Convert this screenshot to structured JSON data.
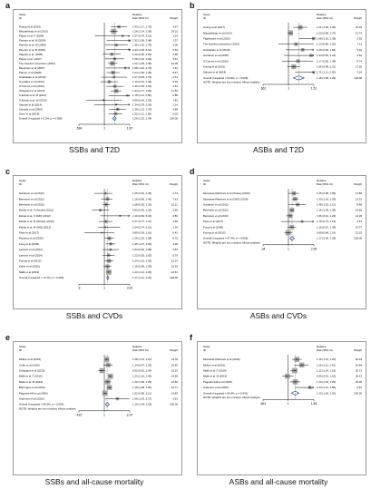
{
  "panels": [
    {
      "letter": "a",
      "caption": "SSBs and T2D",
      "chart_data": {
        "type": "forest",
        "header": {
          "study": "Study",
          "id": "ID",
          "rr": "Relative",
          "rr2": "Risk (95% CI)",
          "weight": "Weight"
        },
        "axis_ticks": [
          ".534",
          "1",
          "1.87"
        ],
        "studies": [
          {
            "label": "Huang et al (2014)",
            "rr": 1.43,
            "lo": 1.17,
            "hi": 1.75,
            "ci_text": "1.43 (1.17, 1.75)",
            "weight": "4.67"
          },
          {
            "label": "Bhupathiraju et al (2013)",
            "rr": 1.26,
            "lo": 1.14,
            "hi": 1.39,
            "ci_text": "1.26 (1.14, 1.39)",
            "weight": "20.01"
          },
          {
            "label": "Papier et al. F (2009)",
            "rr": 1.57,
            "lo": 0.79,
            "hi": 3.12,
            "ci_text": "1.57 (0.79, 3.12)",
            "weight": "1.24"
          },
          {
            "label": "Paynter et al. M (2009)",
            "rr": 1.92,
            "lo": 1.06,
            "hi": 3.48,
            "ci_text": "1.92 (1.06, 3.48)",
            "weight": "1.37"
          },
          {
            "label": "Paynter et al. W (2009)",
            "rr": 1.35,
            "lo": 1.02,
            "hi": 1.78,
            "ci_text": "1.35 (1.02, 1.78)",
            "weight": "3.06"
          },
          {
            "label": "Paynter et al. B (2009)",
            "rr": 2.43,
            "lo": 1.05,
            "hi": 5.61,
            "ci_text": "2.43 (1.05, 5.61)",
            "weight": "0.64"
          },
          {
            "label": "Pappas et al. (2006)",
            "rr": 1.2,
            "lo": 0.96,
            "hi": 1.5,
            "ci_text": "1.20 (0.96, 1.50)",
            "weight": "4.96"
          },
          {
            "label": "Papier et al. (2017)",
            "rr": 1.29,
            "lo": 1.02,
            "hi": 1.63,
            "ci_text": "1.29 (1.02, 1.63)",
            "weight": "3.91"
          },
          {
            "label": "The InterAct consortium (2013)",
            "rr": 1.22,
            "lo": 1.09,
            "hi": 1.38,
            "ci_text": "1.22 (1.09, 1.38)",
            "weight": "14.09"
          },
          {
            "label": "Montonen et al (2007)",
            "rr": 1.68,
            "lo": 1.04,
            "hi": 2.7,
            "ci_text": "1.68 (1.04, 2.70)",
            "weight": "1.61"
          },
          {
            "label": "Palmer et al (2008)",
            "rr": 1.24,
            "lo": 1.06,
            "hi": 1.45,
            "ci_text": "1.24 (1.06, 1.45)",
            "weight": "8.67"
          },
          {
            "label": "Hirahatake et al (2019)",
            "rr": 1.27,
            "lo": 0.93,
            "hi": 1.74,
            "ci_text": "1.27 (0.93, 1.74)",
            "weight": "2.51"
          },
          {
            "label": "Gonzalez et al (2014)",
            "rr": 1.13,
            "lo": 0.91,
            "hi": 1.4,
            "ci_text": "1.13 (0.91, 1.40)",
            "weight": "5.04"
          },
          {
            "label": "O'Connor et al (2015)",
            "rr": 1.3,
            "lo": 1.05,
            "hi": 1.61,
            "ci_text": "1.30 (1.05, 1.61)",
            "weight": "4.51"
          },
          {
            "label": "Odegaard et al (2010)",
            "rr": 1.34,
            "lo": 1.17,
            "hi": 1.52,
            "ci_text": "1.34 (1.17, 1.52)",
            "weight": "11.52"
          },
          {
            "label": "S.Eshak et al. M (2013)",
            "rr": 1.75,
            "lo": 1.11,
            "hi": 2.65,
            "ci_text": "1.75 (1.11, 2.65)",
            "weight": "0.88"
          },
          {
            "label": "S.Eshak et al. W (2013)",
            "rr": 0.99,
            "lo": 0.64,
            "hi": 1.53,
            "ci_text": "0.99 (0.64, 1.53)",
            "weight": "1.81"
          },
          {
            "label": "Sakurai et al (2014)",
            "rr": 1.34,
            "lo": 0.78,
            "hi": 2.3,
            "ci_text": "1.34 (0.78, 2.30)",
            "weight": "1.14"
          },
          {
            "label": "Schulze et al (2004)",
            "rr": 1.39,
            "lo": 1.13,
            "hi": 1.7,
            "ci_text": "1.39 (1.13, 1.70)",
            "weight": "4.89"
          },
          {
            "label": "Stern et al (2019)",
            "rr": 1.32,
            "lo": 1.11,
            "hi": 1.56,
            "ci_text": "1.32 (1.11, 1.56)",
            "weight": "6.03"
          }
        ],
        "overall": {
          "label": "Overall (I-squared = 0.0%, p = 0.558)",
          "rr": 1.29,
          "lo": 1.23,
          "hi": 1.34,
          "ci_text": "1.29 (1.23, 1.34)",
          "weight": "100.00"
        },
        "note": ""
      }
    },
    {
      "letter": "b",
      "caption": "ASBs and T2D",
      "chart_data": {
        "type": "forest",
        "header": {
          "study": "Study",
          "id": "ID",
          "rr": "Relative",
          "rr2": "Risk (95% CI)",
          "weight": "Weight"
        },
        "axis_ticks": [
          ".662",
          "1",
          "1.51"
        ],
        "studies": [
          {
            "label": "Huang et al (2017)",
            "rr": 1.21,
            "lo": 1.08,
            "hi": 1.36,
            "ci_text": "1.21 (1.08, 1.36)",
            "weight": "15.23"
          },
          {
            "label": "Bhupathiraju et al (2013)",
            "rr": 1.03,
            "lo": 0.99,
            "hi": 1.07,
            "ci_text": "1.03 (0.99, 1.07)",
            "weight": "21.74"
          },
          {
            "label": "Fagherazzi et al (2013)",
            "rr": 1.68,
            "lo": 1.19,
            "hi": 2.38,
            "ci_text": "1.68 (1.19, 2.38)",
            "weight": "5.35"
          },
          {
            "label": "The InterAct consortium (2013)",
            "rr": 1.13,
            "lo": 0.85,
            "hi": 1.5,
            "ci_text": "1.13 (0.85, 1.50)",
            "weight": "7.11"
          },
          {
            "label": "Hirahatake et al (2019)",
            "rr": 1.26,
            "lo": 0.96,
            "hi": 1.66,
            "ci_text": "1.26 (0.96, 1.66)",
            "weight": "5.94"
          },
          {
            "label": "Gardener et al (2018)",
            "rr": 1.44,
            "lo": 0.93,
            "hi": 2.24,
            "ci_text": "1.44 (0.93, 2.24)",
            "weight": "4.62"
          },
          {
            "label": "O'Connor et al (2015)",
            "rr": 1.17,
            "lo": 0.9,
            "hi": 1.49,
            "ci_text": "1.17 (0.90, 1.49)",
            "weight": "8.74"
          },
          {
            "label": "Koning et al (2011)",
            "rr": 1.09,
            "lo": 0.98,
            "hi": 1.21,
            "ci_text": "1.09 (0.98, 1.21)",
            "weight": "17.20"
          },
          {
            "label": "Sakurai et al (2014)",
            "rr": 1.71,
            "lo": 1.11,
            "hi": 2.63,
            "ci_text": "1.71 (1.11, 2.63)",
            "weight": "3.24"
          }
        ],
        "overall": {
          "label": "Overall (I-squared = 63.0%, p = 0.006)",
          "rr": 1.18,
          "lo": 1.08,
          "hi": 1.29,
          "ci_text": "1.18 (1.08, 1.29)",
          "weight": "100.00"
        },
        "note": "NOTE: Weights are from random effects analysis"
      }
    },
    {
      "letter": "c",
      "caption": "SSBs and CVDs",
      "chart_data": {
        "type": "forest",
        "header": {
          "study": "Study",
          "id": "ID",
          "rr": "Relative",
          "rr2": "Risk (95% CI)",
          "weight": "Weight"
        },
        "axis_ticks": [
          ".3",
          "1",
          "3.32"
        ],
        "studies": [
          {
            "label": "Gardener et al (2012)",
            "rr": 1.05,
            "lo": 0.62,
            "hi": 1.46,
            "ci_text": "1.05 (0.62, 1.46)",
            "weight": "2.74"
          },
          {
            "label": "Bernstein et al (2012)",
            "rr": 1.16,
            "lo": 0.86,
            "hi": 1.46,
            "ci_text": "1.16 (0.86, 1.46)",
            "weight": "7.61"
          },
          {
            "label": "Bernstein et al (2013)",
            "rr": 1.08,
            "lo": 0.92,
            "hi": 1.3,
            "ci_text": "1.08 (0.92, 1.30)",
            "weight": "12.12"
          },
          {
            "label": "Eshak et al. F (Stroke) (2012)",
            "rr": 0.83,
            "lo": 0.56,
            "hi": 1.25,
            "ci_text": "0.83 (0.56, 1.25)",
            "weight": "3.56"
          },
          {
            "label": "Eshak et al. F (IHD) (2012)",
            "rr": 2.1,
            "lo": 0.83,
            "hi": 5.33,
            "ci_text": "2.10 (0.83, 5.33)",
            "weight": "0.83"
          },
          {
            "label": "Eshak et al. M (Stroke) (2012)",
            "rr": 1.07,
            "lo": 0.77,
            "hi": 1.47,
            "ci_text": "1.07 (0.77, 1.47)",
            "weight": "4.66"
          },
          {
            "label": "Eshak et al. M (IHD) (2012)",
            "rr": 1.04,
            "lo": 0.74,
            "hi": 2.1,
            "ci_text": "1.04 (0.74, 2.10)",
            "weight": "1.34"
          },
          {
            "label": "Pase et al (2017)",
            "rr": 0.89,
            "lo": 0.39,
            "hi": 1.61,
            "ci_text": "0.89 (0.39, 1.61)",
            "weight": "0.42"
          },
          {
            "label": "Pacheco et al (2020)",
            "rr": 1.26,
            "lo": 1.02,
            "hi": 1.58,
            "ci_text": "1.26 (1.02, 1.58)",
            "weight": "8.75"
          },
          {
            "label": "Fung et al (2009)",
            "rr": 1.35,
            "lo": 1.07,
            "hi": 1.69,
            "ci_text": "1.35 (1.07, 1.69)",
            "weight": "4.36"
          },
          {
            "label": "Larsson et al (2014)",
            "rr": 1.34,
            "lo": 0.92,
            "hi": 1.98,
            "ci_text": "1.34 (0.92, 1.98)",
            "weight": "2.64"
          },
          {
            "label": "Larsson et al (2014)",
            "rr": 1.22,
            "lo": 0.92,
            "hi": 1.62,
            "ci_text": "1.22 (0.92, 1.62)",
            "weight": "5.79"
          },
          {
            "label": "Koning et al (2012)",
            "rr": 1.24,
            "lo": 1.01,
            "hi": 1.52,
            "ci_text": "1.24 (1.01, 1.52)",
            "weight": "12.14"
          },
          {
            "label": "Keller et al (2020)",
            "rr": 1.16,
            "lo": 0.96,
            "hi": 1.39,
            "ci_text": "1.16 (0.96, 1.39)",
            "weight": "10.33"
          },
          {
            "label": "Malik et al (2019)",
            "rr": 1.23,
            "lo": 1.12,
            "hi": 1.36,
            "ci_text": "1.23 (1.12, 1.36)",
            "weight": "22.61"
          }
        ],
        "overall": {
          "label": "Overall (I-squared = 14.7%, p = 0.290)",
          "rr": 1.17,
          "lo": 1.12,
          "hi": 1.23,
          "ci_text": "1.17 (1.12, 1.23)",
          "weight": "100.00"
        },
        "note": ""
      }
    },
    {
      "letter": "d",
      "caption": "ASBs and CVDs",
      "chart_data": {
        "type": "forest",
        "header": {
          "study": "Study",
          "id": "ID",
          "rr": "Relative",
          "rr2": "Risk (95% CI)",
          "weight": "Weight"
        },
        "axis_ticks": [
          ".34",
          "1",
          "2.95"
        ],
        "studies": [
          {
            "label": "Mossavar-Rahmani et al (Stroke) (2019)",
            "rr": 1.26,
            "lo": 0.98,
            "hi": 1.59,
            "ci_text": "1.26 (0.98, 1.59)",
            "weight": "11.89"
          },
          {
            "label": "Mossavar-Rahmani et al (CHD) (2019)",
            "rr": 1.33,
            "lo": 1.16,
            "hi": 1.53,
            "ci_text": "1.33 (1.16, 1.53)",
            "weight": "12.51"
          },
          {
            "label": "Gardener et al (2012)",
            "rr": 1.48,
            "lo": 1.02,
            "hi": 2.11,
            "ci_text": "1.48 (1.02, 2.11)",
            "weight": "8.48"
          },
          {
            "label": "Bernstein et al (2012)",
            "rr": 1.16,
            "lo": 1.05,
            "hi": 1.28,
            "ci_text": "1.16 (1.05, 1.28)",
            "weight": "14.66"
          },
          {
            "label": "Bernstein et al (2013)",
            "rr": 1.06,
            "lo": 0.91,
            "hi": 1.23,
            "ci_text": "1.06 (0.91, 1.23)",
            "weight": "14.28"
          },
          {
            "label": "Pase et al (2017)",
            "rr": 1.79,
            "lo": 0.73,
            "hi": 3.19,
            "ci_text": "1.79 (0.73, 3.19)",
            "weight": "2.67"
          },
          {
            "label": "Fung et al (2009)",
            "rr": 1.16,
            "lo": 0.97,
            "hi": 1.39,
            "ci_text": "1.16 (0.97, 1.39)",
            "weight": "13.37"
          },
          {
            "label": "Koning et al (2012)",
            "rr": 0.99,
            "lo": 0.84,
            "hi": 1.16,
            "ci_text": "0.99 (0.84, 1.16)",
            "weight": "22.15"
          }
        ],
        "overall": {
          "label": "Overall (I-squared = 47.4%, p = 0.065)",
          "rr": 1.17,
          "lo": 1.06,
          "hi": 1.29,
          "ci_text": "1.17 (1.06, 1.29)",
          "weight": "100.00"
        },
        "note": "NOTE: Weights are from random effects analysis"
      }
    },
    {
      "letter": "e",
      "caption": "SSBs and all-cause mortality",
      "chart_data": {
        "type": "forest",
        "header": {
          "study": "Study",
          "id": "ID",
          "rr": "Relative",
          "rr2": "Risk (95% CI)",
          "weight": "Weight"
        },
        "axis_ticks": [
          ".422",
          "1",
          "2.37"
        ],
        "studies": [
          {
            "label": "Mullee et al (2019)",
            "rr": 1.08,
            "lo": 1.01,
            "hi": 1.16,
            "ci_text": "1.08 (1.01, 1.16)",
            "weight": "14.78"
          },
          {
            "label": "Collin et al (2019)",
            "rr": 1.14,
            "lo": 0.97,
            "hi": 1.33,
            "ci_text": "1.14 (0.97, 1.33)",
            "weight": "10.63"
          },
          {
            "label": "Odegaard et al (2015)",
            "rr": 0.92,
            "lo": 0.81,
            "hi": 1.04,
            "ci_text": "0.92 (0.81, 1.04)",
            "weight": "12.23"
          },
          {
            "label": "Malik et al. F (2019)",
            "rr": 1.23,
            "lo": 1.16,
            "hi": 1.3,
            "ci_text": "1.23 (1.16, 1.30)",
            "weight": "14.69"
          },
          {
            "label": "Malik et al. M (2019)",
            "rr": 1.12,
            "lo": 1.0,
            "hi": 1.26,
            "ci_text": "1.12 (1.00, 1.26)",
            "weight": "12.66"
          },
          {
            "label": "Barrington et al (2016)",
            "rr": 1.19,
            "lo": 1.08,
            "hi": 1.3,
            "ci_text": "1.19 (1.08, 1.30)",
            "weight": "12.77"
          },
          {
            "label": "Paganini-Hill et al (2006)",
            "rr": 1.02,
            "lo": 0.96,
            "hi": 1.11,
            "ci_text": "1.02 (0.96, 1.11)",
            "weight": "14.83"
          },
          {
            "label": "Anderson et al (2020)",
            "rr": 1.56,
            "lo": 1.03,
            "hi": 2.37,
            "ci_text": "1.56 (1.03, 2.37)",
            "weight": "3.51"
          }
        ],
        "overall": {
          "label": "Overall (I-squared = 80.6%, p = 0.000)",
          "rr": 1.1,
          "lo": 1.04,
          "hi": 1.18,
          "ci_text": "1.10 (1.04, 1.18)",
          "weight": "100.00"
        },
        "note": "NOTE: Weights are from random effects analysis"
      }
    },
    {
      "letter": "f",
      "caption": "ASBs and all-cause mortality",
      "chart_data": {
        "type": "forest",
        "header": {
          "study": "Study",
          "id": "ID",
          "rr": "Relative",
          "rr2": "Risk (95% CI)",
          "weight": "Weight"
        },
        "axis_ticks": [
          ".661",
          "1",
          "1.54"
        ],
        "studies": [
          {
            "label": "Mossavar-Rahmani et al (2019)",
            "rr": 1.16,
            "lo": 1.07,
            "hi": 1.26,
            "ci_text": "1.16 (1.07, 1.26)",
            "weight": "18.19"
          },
          {
            "label": "Mullee et al (2019)",
            "rr": 1.26,
            "lo": 1.11,
            "hi": 1.41,
            "ci_text": "1.26 (1.11, 1.41)",
            "weight": "16.84"
          },
          {
            "label": "Malik et al. F (2019)",
            "rr": 1.12,
            "lo": 1.04,
            "hi": 1.16,
            "ci_text": "1.12 (1.04, 1.16)",
            "weight": "20.71"
          },
          {
            "label": "Malik et al. M (2019)",
            "rr": 0.99,
            "lo": 0.91,
            "hi": 1.1,
            "ci_text": "0.99 (0.91, 1.10)",
            "weight": "18.13"
          },
          {
            "label": "Paganini-Hill et al (2006)",
            "rr": 1.13,
            "lo": 1.03,
            "hi": 1.23,
            "ci_text": "1.13 (1.03, 1.23)",
            "weight": "19.26"
          },
          {
            "label": "Anderson et al (2020)",
            "rr": 1.44,
            "lo": 1.12,
            "hi": 1.86,
            "ci_text": "1.44 (1.12, 1.86)",
            "weight": "6.87"
          }
        ],
        "overall": {
          "label": "Overall (I-squared = 56.9%, p = 0.041)",
          "rr": 1.13,
          "lo": 1.06,
          "hi": 1.2,
          "ci_text": "1.13 (1.06, 1.20)",
          "weight": "100.00"
        },
        "note": "NOTE: Weights are from random effects analysis"
      }
    }
  ],
  "colors": {
    "box": "#a6a6a6",
    "line": "#111111",
    "null_line": "#111111",
    "overall_line": "#555555",
    "diamond": "#2c4a9a",
    "frame": "#9a9a9a"
  }
}
